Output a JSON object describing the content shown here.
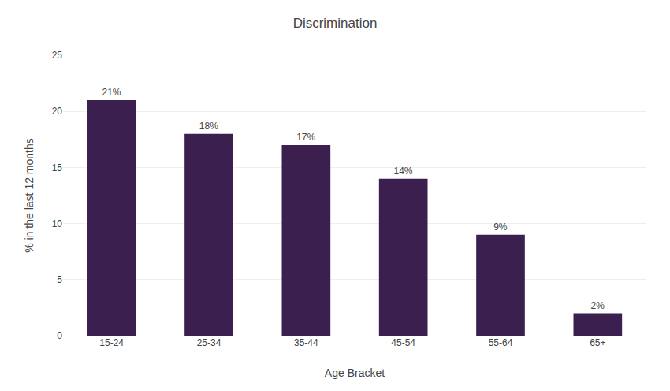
{
  "chart_data": {
    "type": "bar",
    "title": "Discrimination",
    "categories": [
      "15-24",
      "25-34",
      "35-44",
      "45-54",
      "55-64",
      "65+"
    ],
    "values": [
      21,
      18,
      17,
      14,
      9,
      2
    ],
    "value_labels": [
      "21%",
      "18%",
      "17%",
      "14%",
      "9%",
      "2%"
    ],
    "data_labels": true,
    "color": "#3B1F4E",
    "xlabel": "Age Bracket",
    "ylabel": "% in the last 12 months",
    "ylim": [
      0,
      25
    ],
    "yticks": [
      0,
      5,
      10,
      15,
      20,
      25
    ],
    "grid": true
  }
}
